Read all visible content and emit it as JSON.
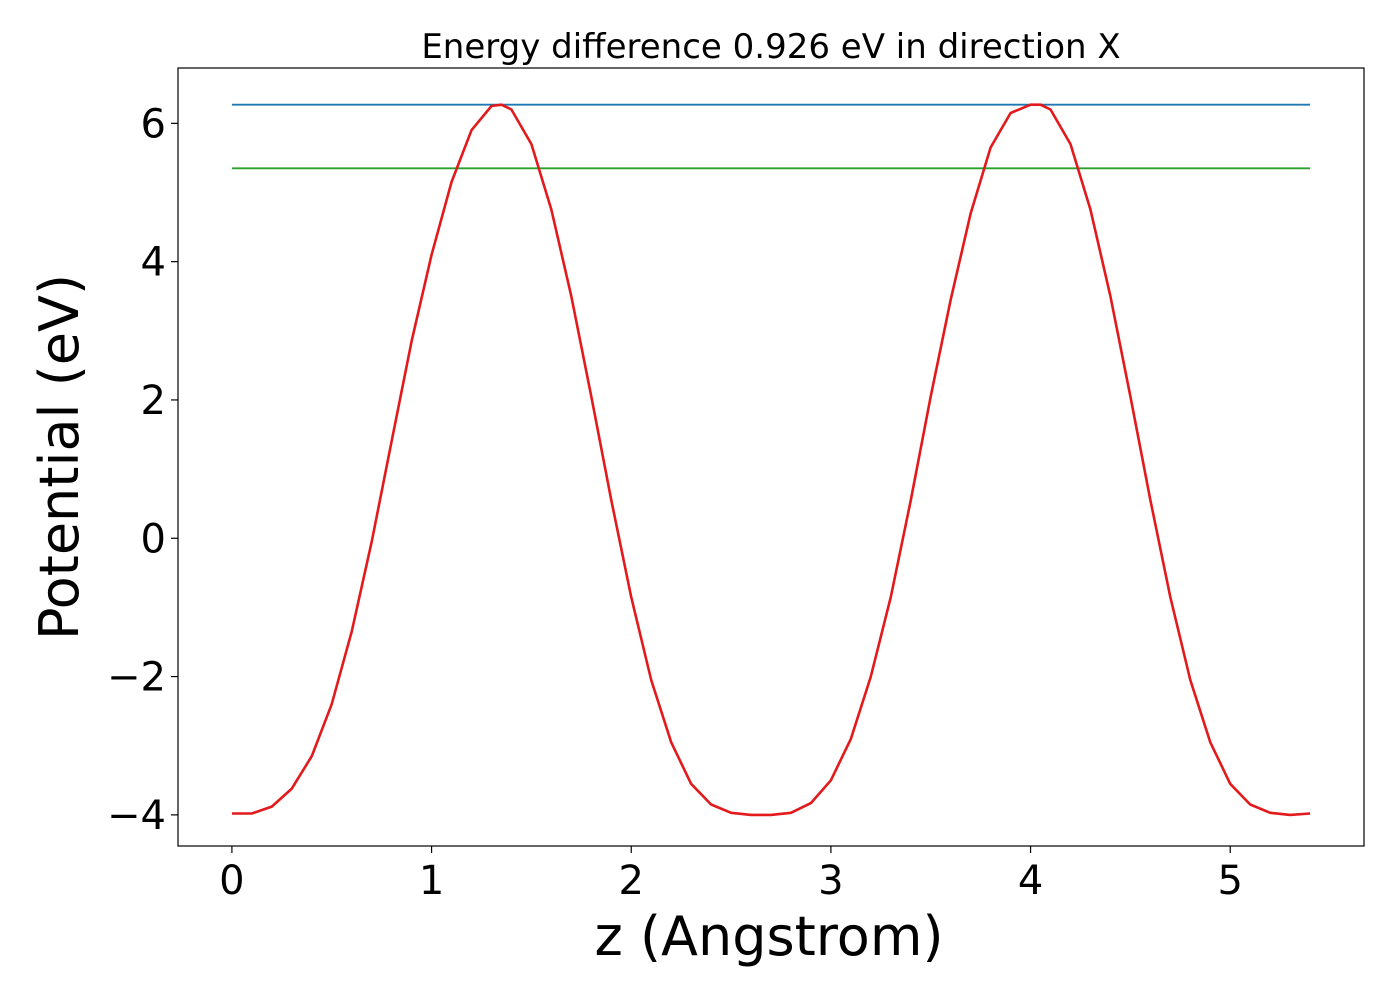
{
  "chart_data": {
    "type": "line",
    "title": "Energy difference 0.926 eV in direction X",
    "xlabel": "z (Angstrom)",
    "ylabel": "Potential (eV)",
    "xlim": [
      -0.27,
      5.67
    ],
    "ylim": [
      -4.45,
      6.8
    ],
    "xticks": [
      0,
      1,
      2,
      3,
      4,
      5
    ],
    "yticks": [
      -4,
      -2,
      0,
      2,
      4,
      6
    ],
    "xtick_labels": [
      "0",
      "1",
      "2",
      "3",
      "4",
      "5"
    ],
    "ytick_labels": [
      "−4",
      "−2",
      "0",
      "2",
      "4",
      "6"
    ],
    "grid": false,
    "series": [
      {
        "color": "#1f77b4",
        "x": [
          0,
          5.4
        ],
        "y": [
          6.27,
          6.27
        ]
      },
      {
        "color": "#2ca02c",
        "x": [
          0,
          5.4
        ],
        "y": [
          5.35,
          5.35
        ]
      },
      {
        "color": "#e31a1c",
        "x": [
          0.0,
          0.1,
          0.2,
          0.3,
          0.4,
          0.5,
          0.6,
          0.7,
          0.8,
          0.9,
          1.0,
          1.1,
          1.2,
          1.3,
          1.35,
          1.4,
          1.5,
          1.6,
          1.7,
          1.8,
          1.9,
          2.0,
          2.1,
          2.2,
          2.3,
          2.4,
          2.5,
          2.6,
          2.7,
          2.8,
          2.9,
          3.0,
          3.1,
          3.2,
          3.3,
          3.4,
          3.5,
          3.6,
          3.7,
          3.8,
          3.9,
          4.0,
          4.05,
          4.1,
          4.2,
          4.3,
          4.4,
          4.5,
          4.6,
          4.7,
          4.8,
          4.9,
          5.0,
          5.1,
          5.2,
          5.3,
          5.4
        ],
        "y": [
          -3.98,
          -3.98,
          -3.88,
          -3.62,
          -3.15,
          -2.4,
          -1.35,
          -0.05,
          1.4,
          2.85,
          4.1,
          5.15,
          5.9,
          6.25,
          6.27,
          6.2,
          5.7,
          4.75,
          3.5,
          2.05,
          0.55,
          -0.85,
          -2.05,
          -2.95,
          -3.55,
          -3.85,
          -3.97,
          -4.0,
          -4.0,
          -3.97,
          -3.83,
          -3.5,
          -2.9,
          -2.0,
          -0.85,
          0.55,
          2.05,
          3.45,
          4.7,
          5.65,
          6.15,
          6.27,
          6.27,
          6.2,
          5.7,
          4.75,
          3.5,
          2.05,
          0.55,
          -0.85,
          -2.05,
          -2.95,
          -3.55,
          -3.85,
          -3.97,
          -4.0,
          -3.98
        ]
      }
    ]
  }
}
